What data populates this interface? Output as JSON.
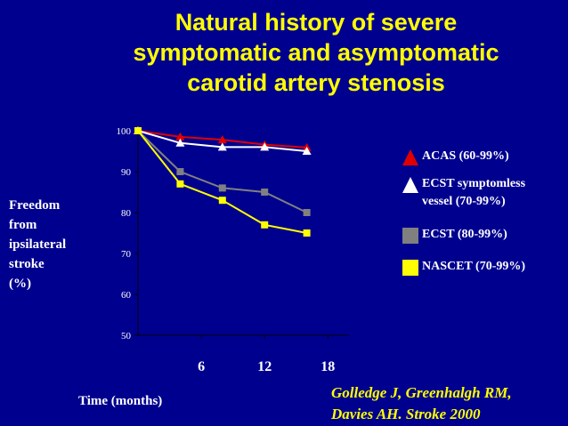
{
  "title": {
    "line1": "Natural history of  severe",
    "line2": "symptomatic and asymptomatic",
    "line3": "carotid artery stenosis"
  },
  "ylabel_lines": [
    "Freedom",
    "from",
    "ipsilateral",
    "stroke",
    "(%)"
  ],
  "xlabel": "Time (months)",
  "legend": {
    "acas": "ACAS (60-99%)",
    "ecst_symptomless_line1": "ECST symptomless",
    "ecst_symptomless_line2": "vessel (70-99%)",
    "ecst": "ECST (80-99%)",
    "nascet": "NASCET (70-99%)"
  },
  "citation": {
    "line1": "Golledge J, Greenhalgh RM,",
    "line2": "Davies AH. Stroke 2000"
  },
  "colors": {
    "background": "#00008f",
    "title": "#ffff00",
    "acas": "#e00000",
    "ecst_symptomless": "#ffffff",
    "ecst": "#808080",
    "nascet": "#ffff00"
  },
  "chart_data": {
    "type": "line",
    "x": [
      0,
      4,
      8,
      12,
      16
    ],
    "x_ticks": [
      6,
      12,
      18
    ],
    "xlim": [
      0,
      20
    ],
    "ylim": [
      50,
      100
    ],
    "y_ticks": [
      50,
      60,
      70,
      80,
      90,
      100
    ],
    "xlabel": "Time (months)",
    "ylabel": "Freedom from ipsilateral stroke (%)",
    "legend_position": "right",
    "grid": false,
    "series": [
      {
        "name": "ACAS (60-99%)",
        "marker": "triangle",
        "color": "#e00000",
        "values": [
          100,
          98.5,
          97.8,
          96.6,
          95.9
        ]
      },
      {
        "name": "ECST symptomless vessel (70-99%)",
        "marker": "triangle",
        "color": "#ffffff",
        "values": [
          100,
          97,
          96,
          96,
          95
        ]
      },
      {
        "name": "ECST (80-99%)",
        "marker": "square",
        "color": "#808080",
        "values": [
          100,
          90,
          86,
          85,
          80
        ]
      },
      {
        "name": "NASCET (70-99%)",
        "marker": "square",
        "color": "#ffff00",
        "values": [
          100,
          87,
          83,
          77,
          75
        ]
      }
    ]
  }
}
